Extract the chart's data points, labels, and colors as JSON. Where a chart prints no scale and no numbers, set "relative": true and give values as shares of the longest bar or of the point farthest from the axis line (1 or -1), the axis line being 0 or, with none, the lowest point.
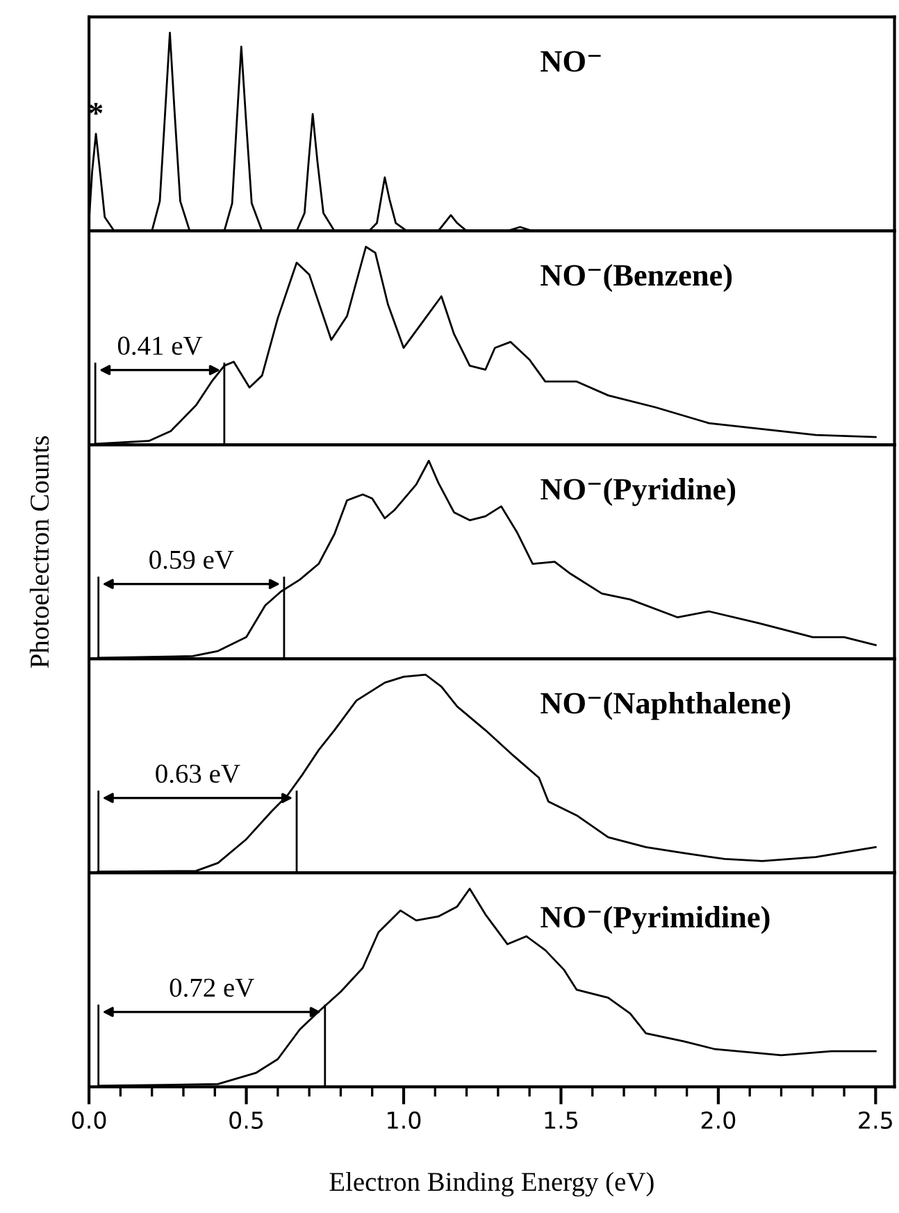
{
  "chart_data": [
    {
      "type": "line",
      "relative": true,
      "xlim": [
        0,
        2.56
      ],
      "tick_labels": false,
      "series": [
        {
          "name": "NO⁻",
          "color": "#000000",
          "x": [
            0.0,
            0.01,
            0.022,
            0.035,
            0.05,
            0.08,
            0.2,
            0.225,
            0.242,
            0.257,
            0.272,
            0.29,
            0.32,
            0.43,
            0.455,
            0.47,
            0.484,
            0.499,
            0.517,
            0.55,
            0.66,
            0.685,
            0.698,
            0.711,
            0.726,
            0.745,
            0.78,
            0.89,
            0.915,
            0.928,
            0.94,
            0.955,
            0.975,
            1.01,
            1.11,
            1.13,
            1.15,
            1.17,
            1.2,
            1.33,
            1.37,
            1.41,
            1.6,
            2.0,
            2.56
          ],
          "values": [
            0.05,
            0.3,
            0.49,
            0.3,
            0.07,
            0.0,
            0.0,
            0.15,
            0.6,
            1.0,
            0.6,
            0.15,
            0.0,
            0.0,
            0.14,
            0.56,
            0.93,
            0.56,
            0.14,
            0.0,
            0.0,
            0.09,
            0.35,
            0.59,
            0.35,
            0.09,
            0.0,
            0.0,
            0.04,
            0.16,
            0.27,
            0.16,
            0.04,
            0.0,
            0.0,
            0.04,
            0.08,
            0.04,
            0.0,
            0.0,
            0.02,
            0.0,
            0.0,
            0.0,
            0.0
          ]
        }
      ],
      "annotations": [
        {
          "text": "*",
          "x": 0.022,
          "y": 0.49
        }
      ]
    },
    {
      "type": "line",
      "relative": true,
      "xlim": [
        0,
        2.56
      ],
      "tick_labels": false,
      "series": [
        {
          "name": "NO⁻(Benzene)",
          "color": "#000000",
          "x": [
            0.02,
            0.19,
            0.26,
            0.34,
            0.39,
            0.43,
            0.46,
            0.51,
            0.55,
            0.6,
            0.66,
            0.7,
            0.77,
            0.82,
            0.88,
            0.91,
            0.95,
            1.0,
            1.06,
            1.12,
            1.16,
            1.21,
            1.26,
            1.29,
            1.34,
            1.4,
            1.45,
            1.55,
            1.65,
            1.8,
            1.97,
            2.14,
            2.31,
            2.5
          ],
          "values": [
            0.005,
            0.02,
            0.07,
            0.2,
            0.32,
            0.4,
            0.42,
            0.29,
            0.35,
            0.64,
            0.92,
            0.86,
            0.53,
            0.65,
            1.0,
            0.97,
            0.71,
            0.49,
            0.62,
            0.75,
            0.56,
            0.4,
            0.38,
            0.49,
            0.52,
            0.43,
            0.32,
            0.32,
            0.25,
            0.19,
            0.11,
            0.08,
            0.05,
            0.04
          ]
        }
      ],
      "ref_lines": [
        {
          "axis": "x",
          "value": 0.02
        },
        {
          "axis": "x",
          "value": 0.43
        }
      ],
      "annotations": [
        "0.41 eV"
      ]
    },
    {
      "type": "line",
      "relative": true,
      "xlim": [
        0,
        2.56
      ],
      "tick_labels": false,
      "ylabel": "Photoelectron Counts",
      "series": [
        {
          "name": "NO⁻(Pyridine)",
          "color": "#000000",
          "x": [
            0.028,
            0.33,
            0.41,
            0.5,
            0.56,
            0.61,
            0.67,
            0.73,
            0.78,
            0.82,
            0.87,
            0.9,
            0.94,
            0.97,
            1.04,
            1.08,
            1.11,
            1.16,
            1.21,
            1.26,
            1.31,
            1.36,
            1.41,
            1.48,
            1.53,
            1.63,
            1.72,
            1.87,
            1.97,
            2.13,
            2.3,
            2.4,
            2.5
          ],
          "values": [
            0.005,
            0.014,
            0.04,
            0.11,
            0.27,
            0.34,
            0.4,
            0.48,
            0.63,
            0.8,
            0.83,
            0.81,
            0.71,
            0.75,
            0.88,
            1.0,
            0.89,
            0.74,
            0.7,
            0.72,
            0.77,
            0.64,
            0.48,
            0.49,
            0.43,
            0.33,
            0.3,
            0.21,
            0.24,
            0.18,
            0.11,
            0.11,
            0.07
          ]
        }
      ],
      "ref_lines": [
        {
          "axis": "x",
          "value": 0.03
        },
        {
          "axis": "x",
          "value": 0.62
        }
      ],
      "annotations": [
        "0.59 eV"
      ]
    },
    {
      "type": "line",
      "relative": true,
      "xlim": [
        0,
        2.56
      ],
      "tick_labels": false,
      "series": [
        {
          "name": "NO⁻(Naphthalene)",
          "color": "#000000",
          "x": [
            0.028,
            0.34,
            0.41,
            0.5,
            0.58,
            0.63,
            0.68,
            0.73,
            0.78,
            0.85,
            0.94,
            1.0,
            1.07,
            1.12,
            1.17,
            1.26,
            1.35,
            1.43,
            1.46,
            1.55,
            1.65,
            1.77,
            1.89,
            2.02,
            2.14,
            2.31,
            2.5
          ],
          "values": [
            0.006,
            0.01,
            0.05,
            0.17,
            0.31,
            0.39,
            0.5,
            0.62,
            0.72,
            0.87,
            0.96,
            0.99,
            1.0,
            0.94,
            0.84,
            0.72,
            0.59,
            0.48,
            0.36,
            0.29,
            0.18,
            0.13,
            0.1,
            0.07,
            0.06,
            0.08,
            0.13
          ]
        }
      ],
      "ref_lines": [
        {
          "axis": "x",
          "value": 0.03
        },
        {
          "axis": "x",
          "value": 0.66
        }
      ],
      "annotations": [
        "0.63 eV"
      ]
    },
    {
      "type": "line",
      "relative": true,
      "xlim": [
        0,
        2.56
      ],
      "tick_labels": "x",
      "xlabel": "Electron Binding Energy (eV)",
      "xticks": [
        {
          "value": 0,
          "label": "0.0"
        },
        {
          "value": 0.1,
          "label": null
        },
        {
          "value": 0.2,
          "label": null
        },
        {
          "value": 0.3,
          "label": null
        },
        {
          "value": 0.4,
          "label": null
        },
        {
          "value": 0.5,
          "label": "0.5"
        },
        {
          "value": 0.6,
          "label": null
        },
        {
          "value": 0.7,
          "label": null
        },
        {
          "value": 0.8,
          "label": null
        },
        {
          "value": 0.9,
          "label": null
        },
        {
          "value": 1.0,
          "label": "1.0"
        },
        {
          "value": 1.1,
          "label": null
        },
        {
          "value": 1.2,
          "label": null
        },
        {
          "value": 1.3,
          "label": null
        },
        {
          "value": 1.4,
          "label": null
        },
        {
          "value": 1.5,
          "label": "1.5"
        },
        {
          "value": 1.6,
          "label": null
        },
        {
          "value": 1.7,
          "label": null
        },
        {
          "value": 1.8,
          "label": null
        },
        {
          "value": 1.9,
          "label": null
        },
        {
          "value": 2.0,
          "label": "2.0"
        },
        {
          "value": 2.1,
          "label": null
        },
        {
          "value": 2.2,
          "label": null
        },
        {
          "value": 2.3,
          "label": null
        },
        {
          "value": 2.4,
          "label": null
        },
        {
          "value": 2.5,
          "label": "2.5"
        }
      ],
      "series": [
        {
          "name": "NO⁻(Pyrimidine)",
          "color": "#000000",
          "x": [
            0.03,
            0.41,
            0.53,
            0.6,
            0.67,
            0.73,
            0.8,
            0.87,
            0.92,
            0.99,
            1.04,
            1.11,
            1.17,
            1.21,
            1.26,
            1.33,
            1.39,
            1.45,
            1.51,
            1.55,
            1.65,
            1.72,
            1.77,
            1.89,
            1.99,
            2.2,
            2.36,
            2.5
          ],
          "values": [
            0.005,
            0.014,
            0.07,
            0.14,
            0.29,
            0.38,
            0.48,
            0.6,
            0.78,
            0.89,
            0.84,
            0.86,
            0.91,
            1.0,
            0.87,
            0.72,
            0.76,
            0.69,
            0.59,
            0.49,
            0.45,
            0.37,
            0.27,
            0.23,
            0.19,
            0.16,
            0.18,
            0.18
          ]
        }
      ],
      "ref_lines": [
        {
          "axis": "x",
          "value": 0.03
        },
        {
          "axis": "x",
          "value": 0.75
        }
      ],
      "annotations": [
        "0.72 eV"
      ]
    }
  ]
}
